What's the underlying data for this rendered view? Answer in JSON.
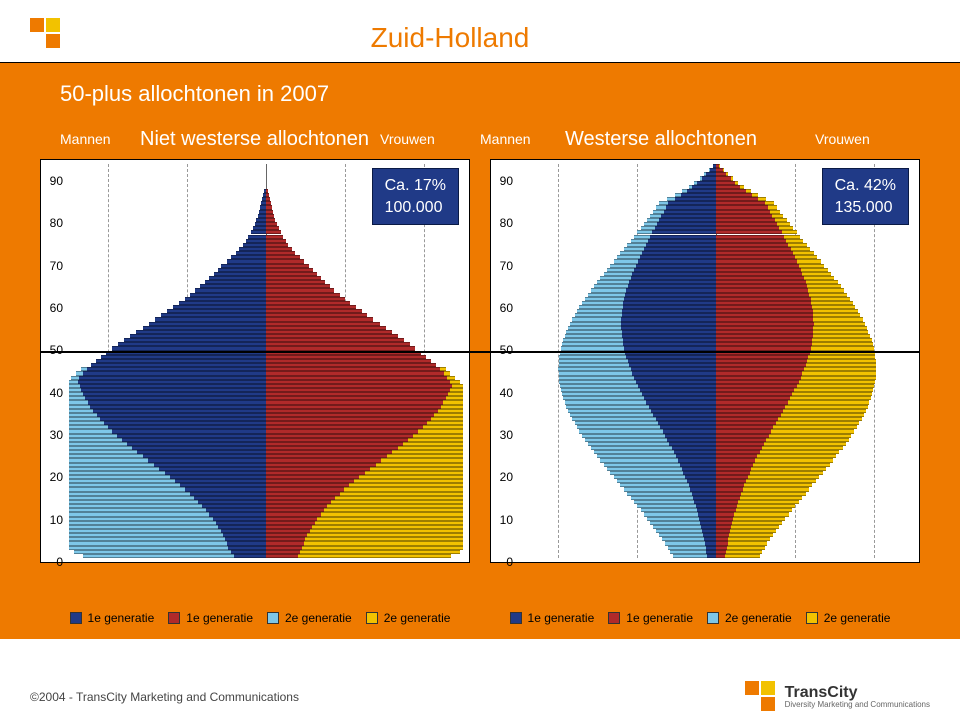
{
  "title": "Zuid-Holland",
  "subtitle": "50-plus allochtonen in 2007",
  "labels": {
    "mannen": "Mannen",
    "vrouwen": "Vrouwen",
    "niet_westerse": "Niet westerse allochtonen",
    "westerse": "Westerse allochtonen"
  },
  "yticks": [
    90,
    80,
    70,
    60,
    50,
    40,
    30,
    20,
    10,
    0
  ],
  "age_range": {
    "min": 0,
    "max": 95,
    "step": 1
  },
  "line_50_age": 50,
  "colors": {
    "accent": "#ee7a00",
    "m1": "#203a87",
    "m2": "#7ec7e8",
    "f1": "#b02a2a",
    "f2": "#f2c200",
    "badge_bg": "#203a87",
    "badge_text": "#ffffff",
    "logo_orange": "#ee7a00",
    "logo_yellow": "#f2c200"
  },
  "badges": {
    "left": {
      "line1": "Ca. 17%",
      "line2": "100.000"
    },
    "right": {
      "line1": "Ca. 42%",
      "line2": "135.000"
    }
  },
  "legend": [
    {
      "label": "1e generatie",
      "color": "#203a87"
    },
    {
      "label": "1e generatie",
      "color": "#b02a2a"
    },
    {
      "label": "2e generatie",
      "color": "#7ec7e8"
    },
    {
      "label": "2e generatie",
      "color": "#f2c200"
    }
  ],
  "grid_positions_pct": [
    10,
    30,
    70,
    90
  ],
  "charts": {
    "niet_westerse": {
      "type": "population-pyramid",
      "max_value": 100,
      "profile": "nw"
    },
    "westerse": {
      "type": "population-pyramid",
      "max_value": 100,
      "profile": "w"
    }
  },
  "footer": {
    "copyright": "©2004 - TransCity Marketing and Communications",
    "brand": "TransCity",
    "tagline": "Diversity Marketing and Communications"
  }
}
